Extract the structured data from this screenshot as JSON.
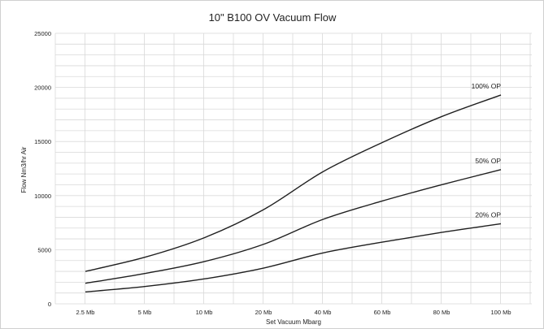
{
  "chart_data": {
    "type": "line",
    "title": "10\" B100 OV Vacuum Flow",
    "xlabel": "Set Vacuum Mbarg",
    "ylabel": "Flow Nm3/hr Air",
    "categories": [
      "2.5 Mb",
      "5 Mb",
      "10 Mb",
      "20 Mb",
      "40 Mb",
      "60 Mb",
      "80 Mb",
      "100 Mb"
    ],
    "ylim": [
      0,
      25000
    ],
    "yticks": [
      "0",
      "5000",
      "10000",
      "15000",
      "20000",
      "25000"
    ],
    "grid": true,
    "legend": "none",
    "series": [
      {
        "name": "100% OP",
        "values": [
          3000,
          4300,
          6100,
          8700,
          12200,
          14900,
          17300,
          19300
        ]
      },
      {
        "name": "50% OP",
        "values": [
          1900,
          2800,
          3900,
          5500,
          7800,
          9500,
          11000,
          12400
        ]
      },
      {
        "name": "20% OP",
        "values": [
          1100,
          1600,
          2300,
          3300,
          4700,
          5700,
          6600,
          7400
        ]
      }
    ]
  }
}
